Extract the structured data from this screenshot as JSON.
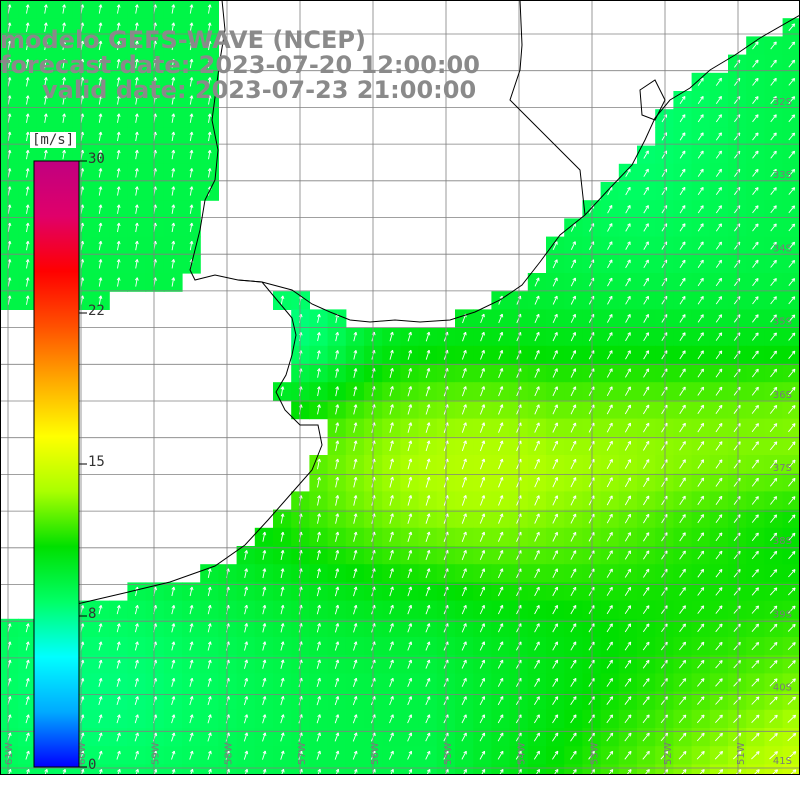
{
  "title": {
    "line1": "modelo GEFS-WAVE (NCEP)",
    "line2": "forecast date: 2023-07-20 12:00:00",
    "line3": "valid date: 2023-07-23 21:00:00"
  },
  "colorbar": {
    "unit": "[m/s]",
    "ticks": [
      "30",
      "22",
      "15",
      "8",
      "0"
    ],
    "min": 0,
    "max": 30,
    "colors": [
      "#0000ff",
      "#00aaff",
      "#00ffff",
      "#00ff66",
      "#00e000",
      "#aaff00",
      "#ffff00",
      "#ffaa00",
      "#ff5000",
      "#ff0000",
      "#e0006a",
      "#c00080"
    ]
  },
  "map": {
    "lat_labels": [
      "32S",
      "33S",
      "34S",
      "35S",
      "36S",
      "37S",
      "38S",
      "39S",
      "40S",
      "41S"
    ],
    "lon_labels": [
      "61W",
      "60W",
      "59W",
      "58W",
      "57W",
      "56W",
      "55W",
      "54W",
      "53W",
      "52W",
      "51W"
    ],
    "land_color": "#ffffff",
    "grid_color": "#808080",
    "coast_color": "#000000"
  }
}
